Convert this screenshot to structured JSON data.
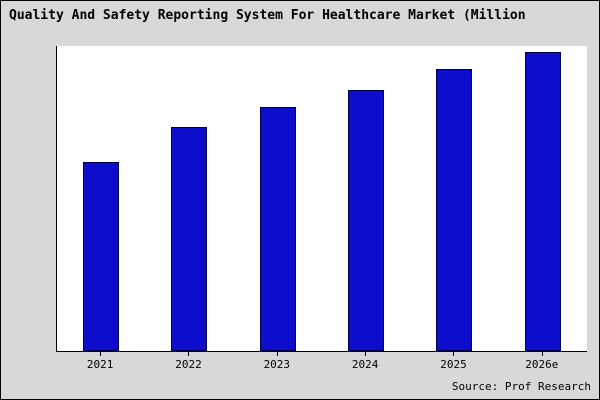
{
  "title": "Quality And Safety Reporting System For Healthcare Market (Million",
  "source": "Source: Prof Research",
  "colors": {
    "background": "#d8d8d8",
    "plot_background": "#ffffff",
    "bar_fill": "#0d0dcc",
    "bar_border": "#00004d",
    "axis": "#000000"
  },
  "chart_data": {
    "type": "bar",
    "title": "Quality And Safety Reporting System For Healthcare Market (Million",
    "categories": [
      "2021",
      "2022",
      "2023",
      "2024",
      "2025",
      "2026e"
    ],
    "values": [
      65,
      77,
      84,
      90,
      97,
      103
    ],
    "xlabel": "",
    "ylabel": "",
    "ylim": [
      0,
      105
    ],
    "grid": false,
    "legend": "none",
    "source_note": "Source: Prof Research"
  }
}
